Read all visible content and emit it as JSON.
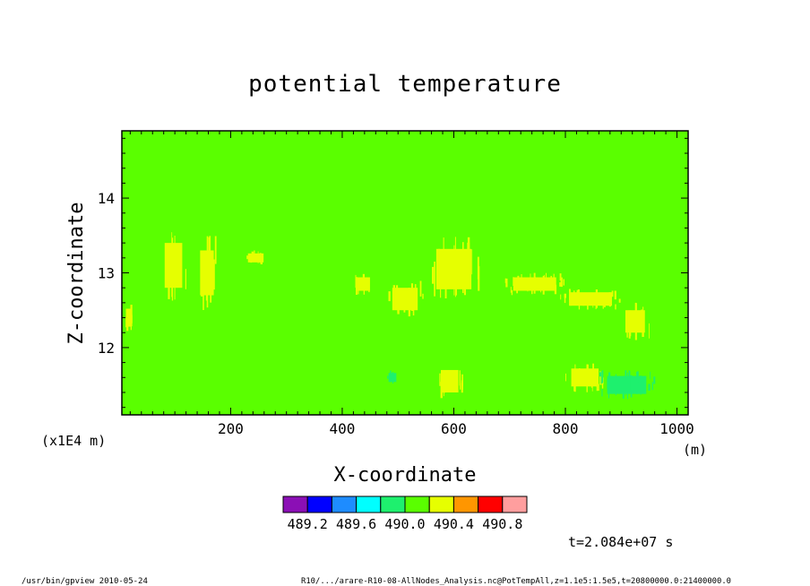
{
  "chart_data": {
    "type": "heatmap",
    "title": "potential temperature",
    "xlabel": "X-coordinate",
    "ylabel": "Z-coordinate",
    "x_unit": "(m)",
    "y_unit": "(x1E4 m)",
    "xlim": [
      5,
      1020
    ],
    "ylim": [
      11.1,
      14.9
    ],
    "x_ticks": [
      200,
      400,
      600,
      800,
      1000
    ],
    "y_ticks": [
      12,
      13,
      14
    ],
    "x_tick_labels": [
      "200",
      "400",
      "600",
      "800",
      "1000"
    ],
    "y_tick_labels": [
      "12",
      "13",
      "14"
    ],
    "background_value": 490.1,
    "colorbar": {
      "colors": [
        "#8b0fb5",
        "#0000ff",
        "#1e8cff",
        "#00ffff",
        "#1ef06e",
        "#5aff00",
        "#e6ff00",
        "#ff9600",
        "#ff0000",
        "#ff9e9e"
      ],
      "labels": [
        "489.2",
        "489.6",
        "490.0",
        "490.4",
        "490.8"
      ],
      "label_values": [
        489.2,
        489.6,
        490.0,
        490.4,
        490.8
      ]
    },
    "regions": [
      {
        "value": 490.3,
        "x": [
          10,
          25
        ],
        "z": [
          12.2,
          12.6
        ]
      },
      {
        "value": 490.3,
        "x": [
          75,
          120
        ],
        "z": [
          12.6,
          13.6
        ]
      },
      {
        "value": 490.3,
        "x": [
          140,
          175
        ],
        "z": [
          12.5,
          13.5
        ]
      },
      {
        "value": 490.3,
        "x": [
          225,
          265
        ],
        "z": [
          13.1,
          13.3
        ]
      },
      {
        "value": 490.3,
        "x": [
          420,
          455
        ],
        "z": [
          12.7,
          13.0
        ]
      },
      {
        "value": 490.3,
        "x": [
          480,
          545
        ],
        "z": [
          12.4,
          12.9
        ]
      },
      {
        "value": 490.3,
        "x": [
          555,
          645
        ],
        "z": [
          12.6,
          13.5
        ]
      },
      {
        "value": 490.3,
        "x": [
          690,
          800
        ],
        "z": [
          12.7,
          13.0
        ]
      },
      {
        "value": 490.3,
        "x": [
          790,
          900
        ],
        "z": [
          12.5,
          12.8
        ]
      },
      {
        "value": 490.3,
        "x": [
          900,
          950
        ],
        "z": [
          12.1,
          12.6
        ]
      },
      {
        "value": 490.3,
        "x": [
          570,
          615
        ],
        "z": [
          11.3,
          11.8
        ]
      },
      {
        "value": 490.3,
        "x": [
          800,
          870
        ],
        "z": [
          11.4,
          11.8
        ]
      },
      {
        "value": 489.9,
        "x": [
          480,
          500
        ],
        "z": [
          11.5,
          11.7
        ]
      },
      {
        "value": 489.9,
        "x": [
          860,
          960
        ],
        "z": [
          11.3,
          11.7
        ]
      }
    ]
  },
  "time_label": "t=2.084e+07 s",
  "footer": {
    "left": "/usr/bin/gpview  2010-05-24",
    "right": "R10/.../arare-R10-08-AllNodes_Analysis.nc@PotTempAll,z=1.1e5:1.5e5,t=20800000.0:21400000.0"
  }
}
